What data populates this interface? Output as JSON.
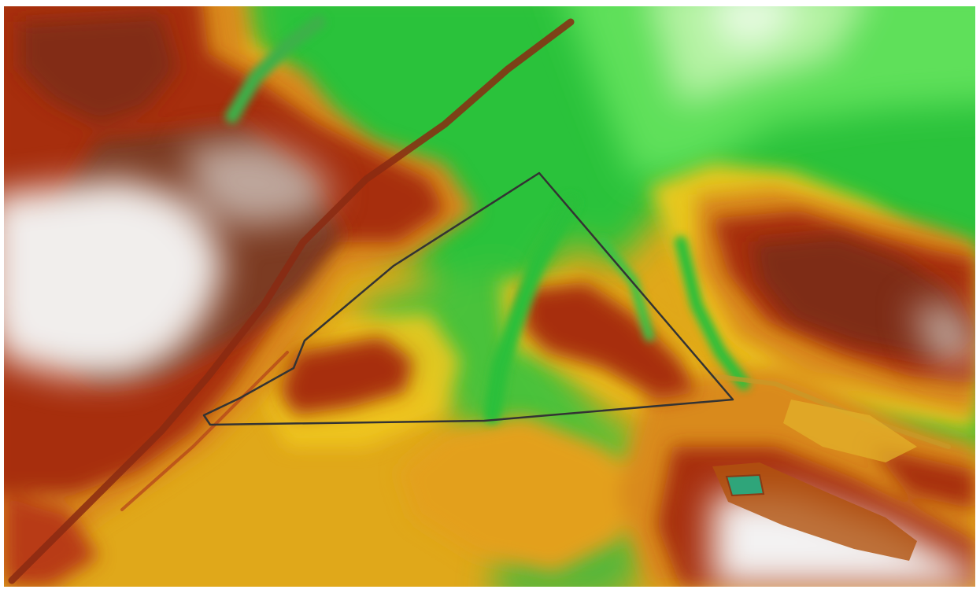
{
  "map": {
    "type": "elevation-relief",
    "colors": {
      "lowland": "#1fbf2a",
      "low_valley": "#2fd23a",
      "bright_low": "#9af08a",
      "mid": "#e8c21a",
      "upper_mid": "#d9841a",
      "high": "#a82e10",
      "very_high": "#8a3a1c",
      "summit": "#ebe9e8",
      "water": "#2fa57a",
      "outline": "#333333"
    },
    "outline_shape": "quadrilateral-area-boundary"
  }
}
